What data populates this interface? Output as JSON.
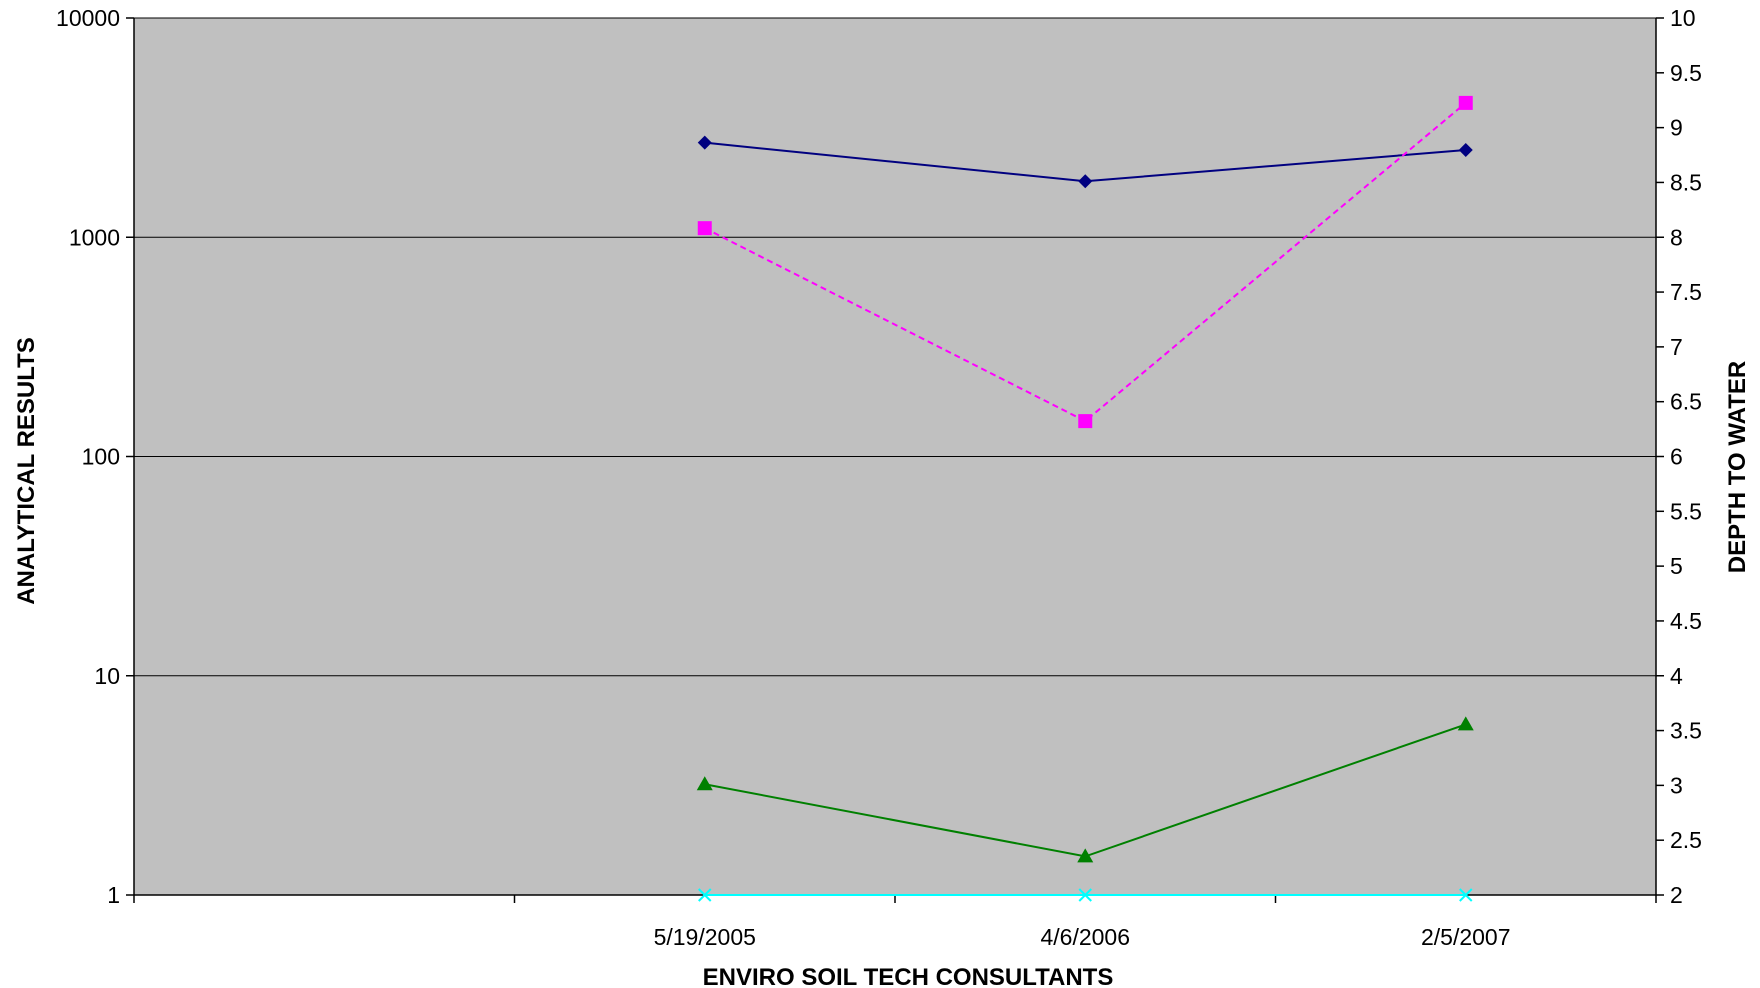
{
  "chart_data": {
    "type": "line",
    "title": "",
    "xlabel": "ENVIRO SOIL TECH CONSULTANTS",
    "ylabel": "ANALYTICAL RESULTS",
    "y2label": "DEPTH TO WATER",
    "y_scale": "log",
    "ylim": [
      1,
      10000
    ],
    "yticks": [
      "1",
      "10",
      "100",
      "1000",
      "10000"
    ],
    "y2lim": [
      2,
      10
    ],
    "y2ticks": [
      "2",
      "2.5",
      "3",
      "3.5",
      "4",
      "4.5",
      "5",
      "5.5",
      "6",
      "6.5",
      "7",
      "7.5",
      "8",
      "8.5",
      "9",
      "9.5",
      "10"
    ],
    "categories": [
      "",
      "5/19/2005",
      "4/6/2006",
      "2/5/2007"
    ],
    "grid": "horizontal",
    "legend": "none",
    "plot_background": "#c0c0c0",
    "series": [
      {
        "color": "#000080",
        "marker": "diamond",
        "dash": "solid",
        "values": [
          null,
          2700,
          1800,
          2500
        ]
      },
      {
        "color": "#ff00ff",
        "marker": "square",
        "dash": "dashed",
        "values": [
          null,
          1100,
          145,
          4100
        ]
      },
      {
        "color": "#008000",
        "marker": "triangle",
        "dash": "solid",
        "values": [
          null,
          3.2,
          1.5,
          6
        ]
      },
      {
        "color": "#00ffff",
        "marker": "x",
        "dash": "solid",
        "values": [
          null,
          1,
          1,
          1
        ]
      }
    ]
  }
}
